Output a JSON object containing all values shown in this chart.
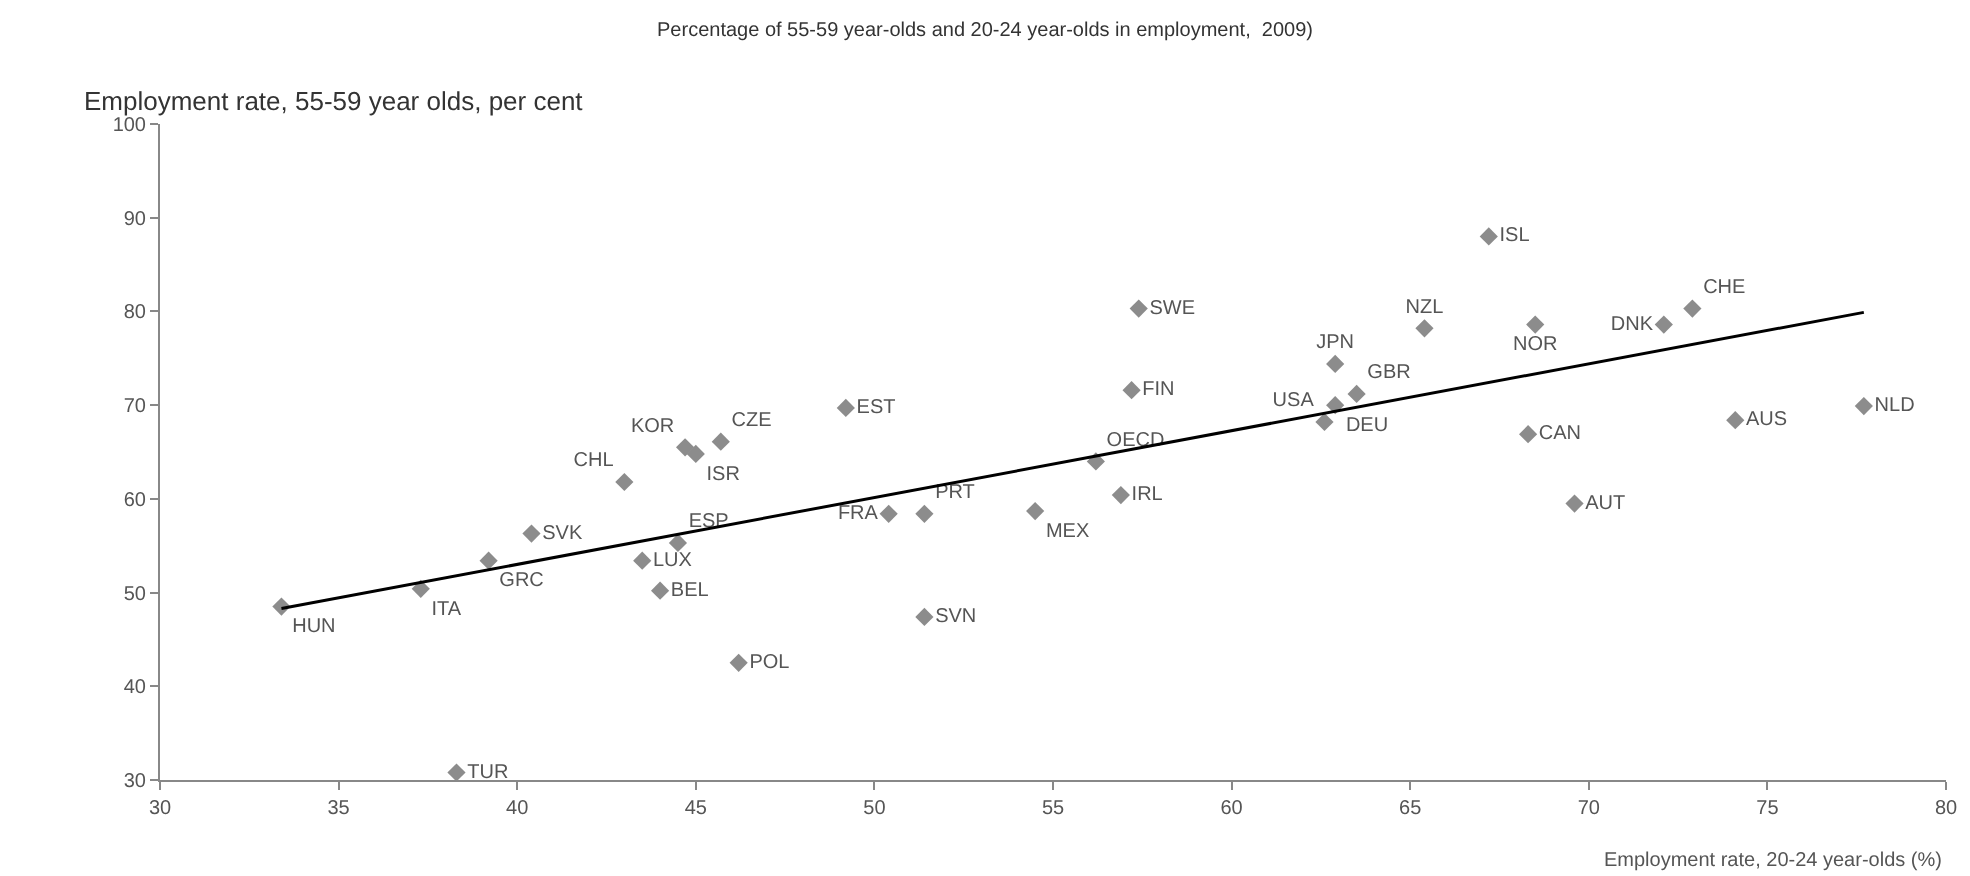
{
  "chart_data": {
    "type": "scatter",
    "title": "Percentage of 55-59 year-olds and 20-24 year-olds in employment,  2009)",
    "ylabel": "Employment rate, 55-59 year olds, per cent",
    "xlabel": "Employment rate, 20-24 year-olds (%)",
    "xlim": [
      30,
      80
    ],
    "xticks": [
      30,
      35,
      40,
      45,
      50,
      55,
      60,
      65,
      70,
      75,
      80
    ],
    "ylim": [
      30,
      100
    ],
    "yticks": [
      30,
      40,
      50,
      60,
      70,
      80,
      90,
      100
    ],
    "grid": false,
    "series": [
      {
        "color": "#8c8c8c",
        "marker": "diamond",
        "x": [
          33.4,
          37.3,
          39.2,
          40.4,
          43.0,
          44.7,
          45.0,
          45.7,
          49.2,
          44.5,
          43.5,
          44.0,
          46.2,
          38.3,
          50.4,
          51.4,
          51.4,
          54.5,
          56.2,
          56.9,
          57.4,
          57.2,
          62.9,
          65.4,
          63.5,
          62.6,
          62.9,
          67.2,
          68.5,
          72.1,
          72.9,
          68.3,
          69.6,
          74.1,
          77.7
        ],
        "values": [
          48.5,
          50.4,
          53.4,
          56.3,
          61.8,
          65.5,
          64.8,
          66.1,
          69.7,
          55.3,
          53.4,
          50.2,
          42.5,
          30.8,
          58.4,
          58.4,
          47.4,
          58.7,
          64.0,
          60.4,
          80.3,
          71.6,
          74.4,
          78.2,
          71.2,
          68.2,
          70.0,
          88.0,
          78.6,
          78.6,
          80.3,
          66.9,
          59.5,
          68.4,
          69.9
        ],
        "value_labels": [
          "HUN",
          "ITA",
          "GRC",
          "SVK",
          "CHL",
          "KOR",
          "ISR",
          "CZE",
          "EST",
          "ESP",
          "LUX",
          "BEL",
          "POL",
          "TUR",
          "FRA",
          "PRT",
          "SVN",
          "MEX",
          "OECD",
          "IRL",
          "SWE",
          "FIN",
          "JPN",
          "NZL",
          "GBR",
          "USA",
          "DEU",
          "ISL",
          "NOR",
          "DNK",
          "CHE",
          "CAN",
          "AUT",
          "AUS",
          "NLD"
        ]
      },
      {
        "type": "line",
        "color": "#000000",
        "x": [
          33.4,
          77.7
        ],
        "values": [
          48.3,
          79.9
        ],
        "line_style": "solid"
      }
    ]
  }
}
